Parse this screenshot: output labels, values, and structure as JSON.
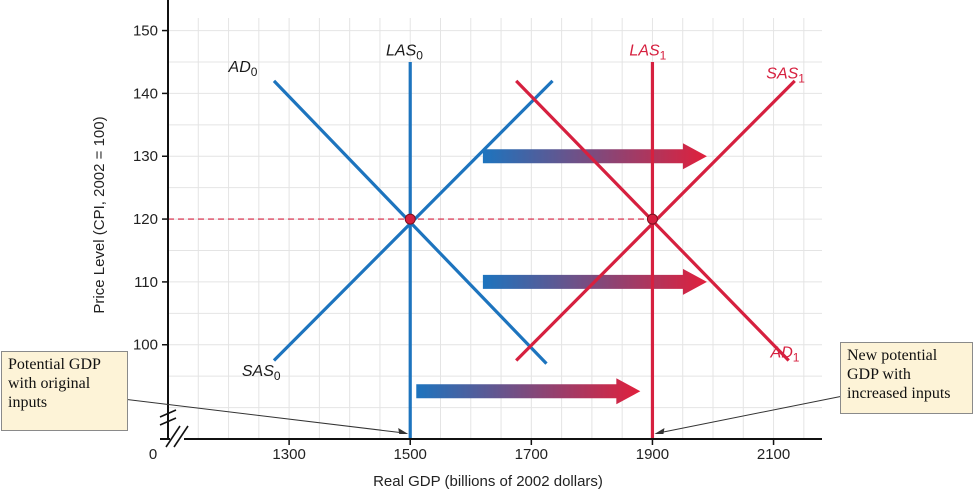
{
  "chart_data": {
    "type": "line",
    "xlabel": "Real GDP (billions of 2002 dollars)",
    "ylabel": "Price Level (CPI, 2002 = 100)",
    "xlim": [
      1100,
      2180
    ],
    "ylim": [
      85,
      152
    ],
    "x_ticks": [
      {
        "value": 1300,
        "label": "1300",
        "color": "#222222"
      },
      {
        "value": 1500,
        "label": "1500",
        "color": "#d6203f"
      },
      {
        "value": 1700,
        "label": "1700",
        "color": "#222222"
      },
      {
        "value": 1900,
        "label": "1900",
        "color": "#d6203f"
      },
      {
        "value": 2100,
        "label": "2100",
        "color": "#222222"
      }
    ],
    "x_origin_label": "0",
    "y_ticks": [
      {
        "value": 100,
        "label": "100",
        "color": "#222222"
      },
      {
        "value": 110,
        "label": "110",
        "color": "#222222"
      },
      {
        "value": 120,
        "label": "120",
        "color": "#d6203f"
      },
      {
        "value": 130,
        "label": "130",
        "color": "#222222"
      },
      {
        "value": 140,
        "label": "140",
        "color": "#222222"
      },
      {
        "value": 150,
        "label": "150",
        "color": "#222222"
      }
    ],
    "gridlines": true,
    "series": [
      {
        "name": "AD0",
        "color": "#1d74be",
        "x": [
          1275,
          1725
        ],
        "y": [
          142,
          97
        ]
      },
      {
        "name": "SAS0",
        "color": "#1d74be",
        "x": [
          1275,
          1735
        ],
        "y": [
          97.5,
          142
        ]
      },
      {
        "name": "LAS0",
        "color": "#1d74be",
        "x": [
          1500,
          1500
        ],
        "y": [
          85,
          145
        ]
      },
      {
        "name": "AD1",
        "color": "#d6203f",
        "x": [
          1675,
          2125
        ],
        "y": [
          142,
          97.5
        ]
      },
      {
        "name": "SAS1",
        "color": "#d6203f",
        "x": [
          1675,
          2135
        ],
        "y": [
          97.5,
          142
        ]
      },
      {
        "name": "LAS1",
        "color": "#d6203f",
        "x": [
          1900,
          1900
        ],
        "y": [
          85,
          145
        ]
      }
    ],
    "curve_labels": [
      {
        "series": "AD0",
        "main": "AD",
        "sub": "0",
        "color": "#1a1a1a",
        "x": 1200,
        "y": 143.4
      },
      {
        "series": "SAS0",
        "main": "SAS",
        "sub": "0",
        "color": "#1a1a1a",
        "x": 1222,
        "y": 95
      },
      {
        "series": "LAS0",
        "main": "LAS",
        "sub": "0",
        "color": "#1a1a1a",
        "x": 1460,
        "y": 146
      },
      {
        "series": "LAS1",
        "main": "LAS",
        "sub": "1",
        "color": "#d6203f",
        "x": 1862,
        "y": 146
      },
      {
        "series": "SAS1",
        "main": "SAS",
        "sub": "1",
        "color": "#d6203f",
        "x": 2088,
        "y": 142.4
      },
      {
        "series": "AD1",
        "main": "AD",
        "sub": "1",
        "color": "#d6203f",
        "x": 2095,
        "y": 98
      }
    ],
    "equilibria": [
      {
        "x": 1500,
        "y": 120,
        "color": "#d6203f"
      },
      {
        "x": 1900,
        "y": 120,
        "color": "#d6203f"
      }
    ],
    "reference_line": {
      "y": 120,
      "x_from": 1100,
      "x_to": 1900,
      "color": "#d6203f",
      "style": "dashed"
    },
    "shift_arrows": [
      {
        "x_from": 1620,
        "x_to": 1990,
        "y": 130
      },
      {
        "x_from": 1620,
        "x_to": 1990,
        "y": 110
      },
      {
        "x_from": 1510,
        "x_to": 1880,
        "y": 92.6
      }
    ],
    "arrow_gradient": [
      "#1d74be",
      "#e0203c"
    ],
    "axis_break": true
  },
  "callouts": {
    "left": {
      "lines": [
        "Potential GDP",
        "with original",
        "inputs"
      ],
      "points_to_x": 1500
    },
    "right": {
      "lines": [
        "New potential",
        "GDP with",
        "increased inputs"
      ],
      "points_to_x": 1900
    }
  }
}
